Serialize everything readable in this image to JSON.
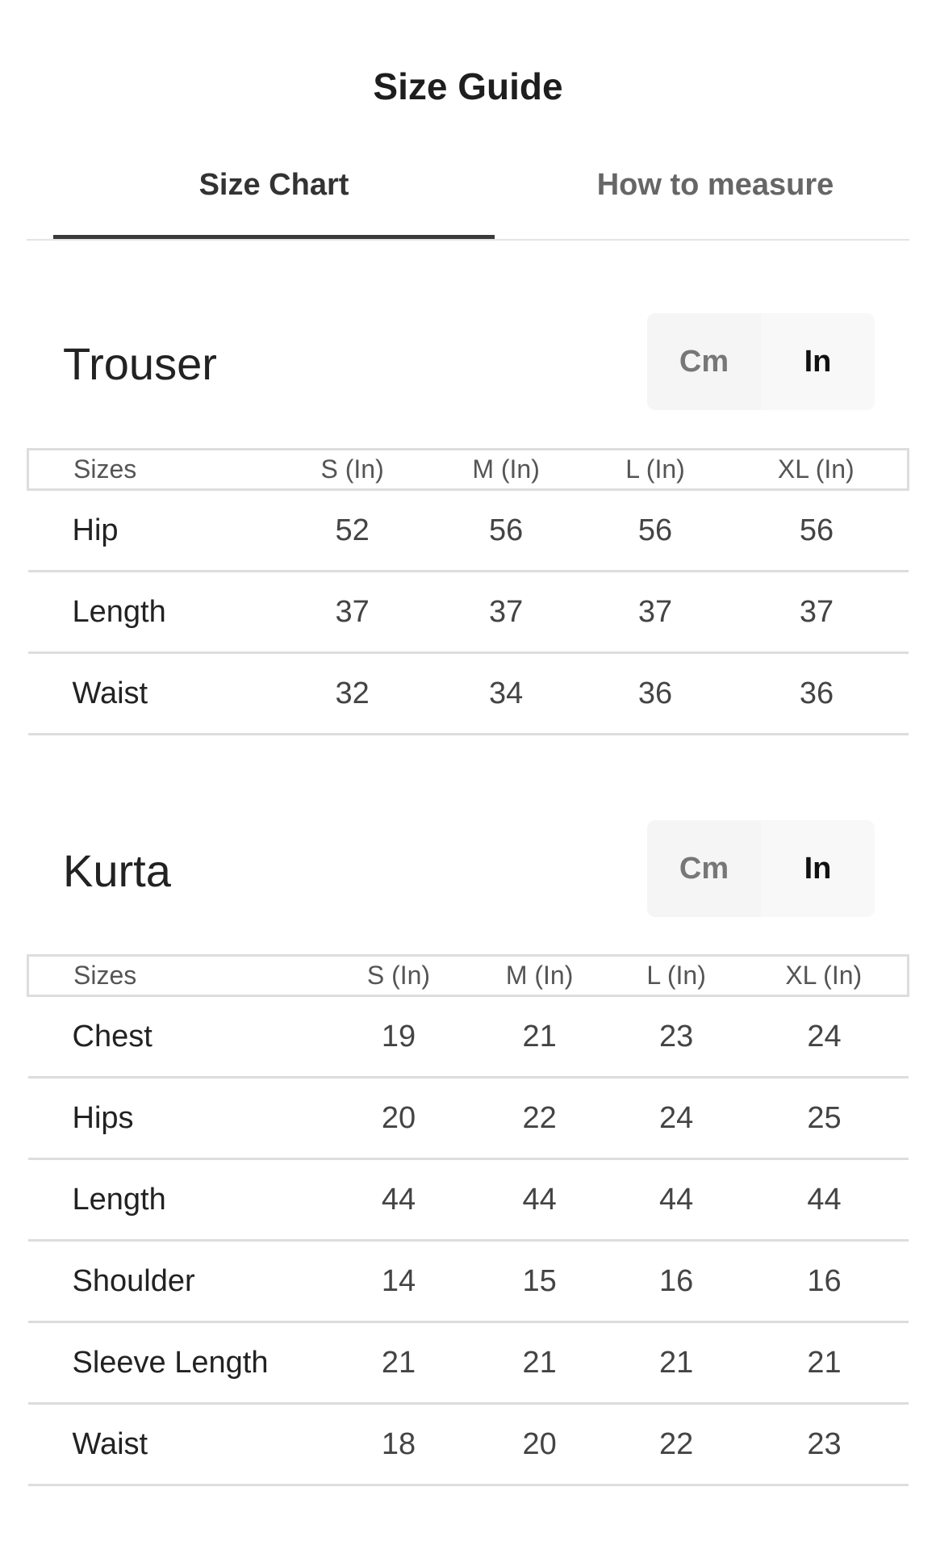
{
  "title": "Size Guide",
  "tabs": [
    {
      "label": "Size Chart",
      "active": true
    },
    {
      "label": "How to measure",
      "active": false
    }
  ],
  "units": {
    "cm": "Cm",
    "in": "In",
    "selected": "In"
  },
  "trouser": {
    "title": "Trouser",
    "headers": [
      "Sizes",
      "S (In)",
      "M (In)",
      "L (In)",
      "XL (In)"
    ],
    "rows": [
      [
        "Hip",
        "52",
        "56",
        "56",
        "56"
      ],
      [
        "Length",
        "37",
        "37",
        "37",
        "37"
      ],
      [
        "Waist",
        "32",
        "34",
        "36",
        "36"
      ]
    ]
  },
  "kurta": {
    "title": "Kurta",
    "headers": [
      "Sizes",
      "S (In)",
      "M (In)",
      "L (In)",
      "XL (In)"
    ],
    "rows": [
      [
        "Chest",
        "19",
        "21",
        "23",
        "24"
      ],
      [
        "Hips",
        "20",
        "22",
        "24",
        "25"
      ],
      [
        "Length",
        "44",
        "44",
        "44",
        "44"
      ],
      [
        "Shoulder",
        "14",
        "15",
        "16",
        "16"
      ],
      [
        "Sleeve Length",
        "21",
        "21",
        "21",
        "21"
      ],
      [
        "Waist",
        "18",
        "20",
        "22",
        "23"
      ]
    ]
  }
}
